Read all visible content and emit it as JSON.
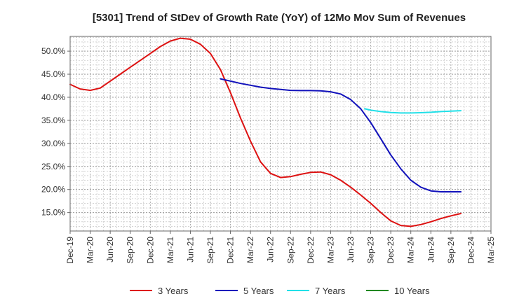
{
  "chart_data": {
    "type": "line",
    "title": "[5301]  Trend of StDev of Growth Rate (YoY) of 12Mo Mov Sum of Revenues",
    "xlabel": "",
    "ylabel": "",
    "y_tick_labels": [
      "15.0%",
      "20.0%",
      "25.0%",
      "30.0%",
      "35.0%",
      "40.0%",
      "45.0%",
      "50.0%"
    ],
    "y_tick_values": [
      15,
      20,
      25,
      30,
      35,
      40,
      45,
      50
    ],
    "ylim": [
      11,
      53.2
    ],
    "x_tick_labels": [
      "Dec-19",
      "Mar-20",
      "Jun-20",
      "Sep-20",
      "Dec-20",
      "Mar-21",
      "Jun-21",
      "Sep-21",
      "Dec-21",
      "Mar-22",
      "Jun-22",
      "Sep-22",
      "Dec-22",
      "Mar-23",
      "Jun-23",
      "Sep-23",
      "Dec-23",
      "Mar-24",
      "Jun-24",
      "Sep-24",
      "Dec-24",
      "Mar-25"
    ],
    "grid": true,
    "legend_position": "bottom",
    "series": [
      {
        "name": "3 Years",
        "color": "#dd1111",
        "points": [
          [
            0,
            42.8
          ],
          [
            0.5,
            41.8
          ],
          [
            1,
            41.5
          ],
          [
            1.5,
            42.0
          ],
          [
            2,
            43.5
          ],
          [
            2.5,
            45.0
          ],
          [
            3,
            46.5
          ],
          [
            3.5,
            48.0
          ],
          [
            4,
            49.5
          ],
          [
            4.5,
            51.0
          ],
          [
            5,
            52.2
          ],
          [
            5.5,
            52.8
          ],
          [
            6,
            52.6
          ],
          [
            6.5,
            51.5
          ],
          [
            7,
            49.5
          ],
          [
            7.5,
            46.0
          ],
          [
            8,
            41.0
          ],
          [
            8.5,
            35.5
          ],
          [
            9,
            30.5
          ],
          [
            9.5,
            26.0
          ],
          [
            10,
            23.5
          ],
          [
            10.5,
            22.6
          ],
          [
            11,
            22.8
          ],
          [
            11.5,
            23.3
          ],
          [
            12,
            23.7
          ],
          [
            12.5,
            23.8
          ],
          [
            13,
            23.2
          ],
          [
            13.5,
            22.0
          ],
          [
            14,
            20.5
          ],
          [
            14.5,
            18.8
          ],
          [
            15,
            17.0
          ],
          [
            15.5,
            15.0
          ],
          [
            16,
            13.2
          ],
          [
            16.5,
            12.2
          ],
          [
            17,
            12.0
          ],
          [
            17.5,
            12.4
          ],
          [
            18,
            13.0
          ],
          [
            18.5,
            13.7
          ],
          [
            19,
            14.3
          ],
          [
            19.5,
            14.8
          ]
        ]
      },
      {
        "name": "5 Years",
        "color": "#1111bb",
        "points": [
          [
            7.5,
            44.0
          ],
          [
            8,
            43.5
          ],
          [
            8.5,
            43.0
          ],
          [
            9,
            42.6
          ],
          [
            9.5,
            42.2
          ],
          [
            10,
            41.9
          ],
          [
            10.5,
            41.7
          ],
          [
            11,
            41.5
          ],
          [
            11.5,
            41.45
          ],
          [
            12,
            41.45
          ],
          [
            12.5,
            41.4
          ],
          [
            13,
            41.2
          ],
          [
            13.5,
            40.7
          ],
          [
            14,
            39.5
          ],
          [
            14.5,
            37.5
          ],
          [
            15,
            34.5
          ],
          [
            15.5,
            31.0
          ],
          [
            16,
            27.5
          ],
          [
            16.5,
            24.5
          ],
          [
            17,
            22.0
          ],
          [
            17.5,
            20.5
          ],
          [
            18,
            19.7
          ],
          [
            18.5,
            19.5
          ],
          [
            19,
            19.5
          ],
          [
            19.5,
            19.5
          ]
        ]
      },
      {
        "name": "7 Years",
        "color": "#22e0e8",
        "points": [
          [
            14.7,
            37.5
          ],
          [
            15,
            37.2
          ],
          [
            15.5,
            36.9
          ],
          [
            16,
            36.7
          ],
          [
            16.5,
            36.6
          ],
          [
            17,
            36.6
          ],
          [
            17.5,
            36.65
          ],
          [
            18,
            36.75
          ],
          [
            18.5,
            36.9
          ],
          [
            19,
            37.0
          ],
          [
            19.5,
            37.1
          ]
        ]
      },
      {
        "name": "10 Years",
        "color": "#228822",
        "points": []
      }
    ]
  }
}
